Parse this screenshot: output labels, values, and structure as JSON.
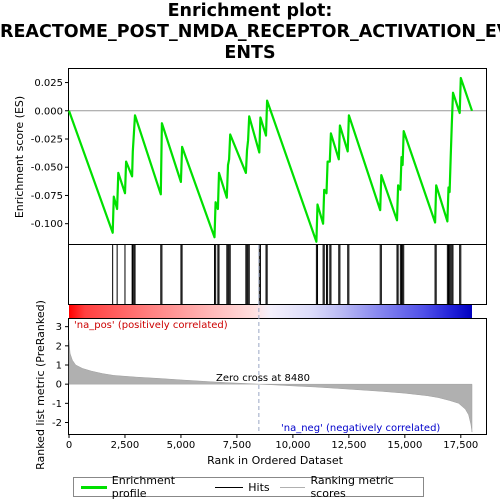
{
  "title_lines": [
    "Enrichment plot:",
    "REACTOME_POST_NMDA_RECEPTOR_ACTIVATION_EV",
    "ENTS"
  ],
  "colors": {
    "enrichment_line": "#00e000",
    "hits": "#000000",
    "ranking_fill": "#b0b0b0",
    "zero_cross_line": "#9aa6c4",
    "pos_label": "#cc0000",
    "neg_label": "#0000cc",
    "heat_left": "#ff0000",
    "heat_right": "#0000ff"
  },
  "legend": {
    "items": [
      {
        "label": "Enrichment profile",
        "color": "#00e000"
      },
      {
        "label": "Hits",
        "color": "#000000"
      },
      {
        "label": "Ranking metric scores",
        "color": "#b0b0b0"
      }
    ]
  },
  "chart_data": [
    {
      "type": "line",
      "name": "enrichment-score",
      "ylabel": "Enrichment score (ES)",
      "xlim": [
        0,
        18000
      ],
      "ylim": [
        -0.118,
        0.037
      ],
      "yticks": [
        0.025,
        0.0,
        -0.025,
        -0.05,
        -0.075,
        -0.1
      ],
      "ytick_labels": [
        "0.025",
        "0.000",
        "-0.025",
        "-0.050",
        "-0.075",
        "-0.100"
      ],
      "grid": false,
      "series": [
        {
          "x": [
            0,
            1950,
            2000,
            2150,
            2200,
            2500,
            2550,
            2820,
            2850,
            2900,
            2950,
            4100,
            4150,
            5000,
            5050,
            6500,
            6550,
            6650,
            6700,
            7050,
            7100,
            7150,
            7200,
            7900,
            7950,
            8000,
            8050,
            8500,
            8550,
            8800,
            8850,
            11050,
            11100,
            11350,
            11400,
            11500,
            11550,
            11650,
            11700,
            12050,
            12100,
            12450,
            12500,
            13900,
            13950,
            14650,
            14700,
            14800,
            14850,
            14900,
            14950,
            16350,
            16400,
            16900,
            16950,
            17000,
            17050,
            17100,
            17150,
            17450,
            17500,
            18000
          ],
          "y": [
            0.0,
            -0.108,
            -0.076,
            -0.087,
            -0.055,
            -0.073,
            -0.045,
            -0.058,
            -0.036,
            -0.02,
            -0.004,
            -0.074,
            -0.011,
            -0.063,
            -0.032,
            -0.112,
            -0.081,
            -0.087,
            -0.055,
            -0.077,
            -0.048,
            -0.043,
            -0.021,
            -0.055,
            -0.035,
            -0.026,
            -0.005,
            -0.037,
            -0.006,
            -0.022,
            0.009,
            -0.116,
            -0.083,
            -0.1,
            -0.07,
            -0.073,
            -0.045,
            -0.045,
            -0.02,
            -0.043,
            -0.013,
            -0.036,
            -0.004,
            -0.088,
            -0.057,
            -0.097,
            -0.066,
            -0.07,
            -0.041,
            -0.048,
            -0.018,
            -0.099,
            -0.066,
            -0.098,
            -0.068,
            -0.072,
            -0.041,
            -0.012,
            0.016,
            -0.002,
            0.029,
            0.0
          ]
        }
      ]
    },
    {
      "type": "scatter",
      "name": "hits",
      "xlim": [
        0,
        18000
      ],
      "x": [
        1950,
        2150,
        2500,
        2820,
        2850,
        2900,
        2950,
        4100,
        4150,
        5000,
        5050,
        6500,
        6550,
        6650,
        6700,
        7050,
        7100,
        7150,
        7200,
        7900,
        7950,
        8000,
        8050,
        8500,
        8550,
        8800,
        8850,
        11050,
        11100,
        11350,
        11400,
        11500,
        11550,
        11650,
        11700,
        12050,
        12100,
        12450,
        12500,
        13900,
        13950,
        14650,
        14700,
        14800,
        14850,
        14900,
        14950,
        16350,
        16400,
        16900,
        16950,
        17000,
        17050,
        17100,
        17150,
        17450,
        17500
      ]
    },
    {
      "type": "area",
      "name": "ranking-metric",
      "xlabel": "Rank in Ordered Dataset",
      "ylabel": "Ranked list metric (PreRanked)",
      "xlim": [
        0,
        18000
      ],
      "ylim": [
        -2.6,
        3.4
      ],
      "yticks": [
        3,
        2,
        1,
        0,
        -1,
        -2
      ],
      "xticks": [
        0,
        2500,
        5000,
        7500,
        10000,
        12500,
        15000,
        17500
      ],
      "xtick_labels": [
        "0",
        "2,500",
        "5,000",
        "7,500",
        "10,000",
        "12,500",
        "15,000",
        "17,500"
      ],
      "x": [
        0,
        50,
        150,
        300,
        600,
        1000,
        1500,
        2000,
        3000,
        4000,
        5000,
        6000,
        7000,
        8000,
        8480,
        9000,
        10000,
        11000,
        12000,
        13000,
        14000,
        15000,
        16000,
        16500,
        17000,
        17400,
        17700,
        17850,
        17950,
        18000
      ],
      "values": [
        2.3,
        1.6,
        1.25,
        1.0,
        0.82,
        0.68,
        0.55,
        0.46,
        0.37,
        0.3,
        0.22,
        0.15,
        0.08,
        0.03,
        0.0,
        -0.03,
        -0.09,
        -0.15,
        -0.22,
        -0.3,
        -0.38,
        -0.47,
        -0.6,
        -0.7,
        -0.85,
        -1.0,
        -1.3,
        -1.6,
        -2.1,
        -2.5
      ],
      "zero_cross": 8480,
      "annotations": [
        "'na_pos' (positively correlated)",
        "'na_neg' (negatively correlated)",
        "Zero cross at 8480"
      ]
    }
  ]
}
